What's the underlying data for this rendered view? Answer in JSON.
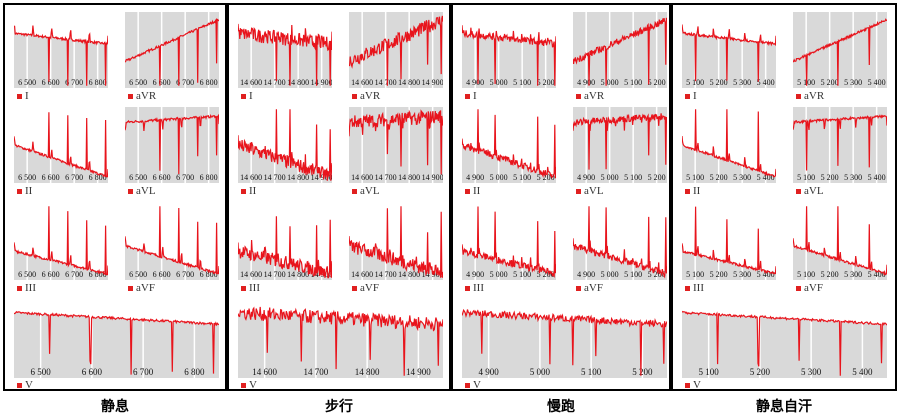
{
  "colors": {
    "trace": "#e8141c",
    "fill": "#d9d9d9",
    "grid": "#ffffff",
    "border": "#000000"
  },
  "chart_data": {
    "type": "line",
    "description_units": "normalized amplitude 0-1",
    "leads": [
      "I",
      "aVR",
      "II",
      "aVL",
      "III",
      "aVF",
      "V"
    ],
    "lead_shapes": {
      "I": {
        "baseline": [
          0.72,
          0.58
        ],
        "spike": "down",
        "secondary": "up"
      },
      "aVR": {
        "baseline": [
          0.35,
          0.9
        ],
        "spike": "down",
        "secondary": "none"
      },
      "II": {
        "baseline": [
          0.5,
          0.08
        ],
        "spike": "up",
        "secondary": "up"
      },
      "aVL": {
        "baseline": [
          0.8,
          0.88
        ],
        "spike": "down",
        "secondary": "down"
      },
      "III": {
        "baseline": [
          0.38,
          0.08
        ],
        "spike": "up",
        "secondary": "up"
      },
      "aVF": {
        "baseline": [
          0.45,
          0.08
        ],
        "spike": "up",
        "secondary": "up"
      },
      "V": {
        "baseline": [
          0.85,
          0.7
        ],
        "spike": "down",
        "secondary": "none"
      }
    },
    "panels": [
      {
        "title": "静息",
        "x_ticks": [
          "6 500",
          "6 600",
          "6 700",
          "6 800"
        ],
        "v_ticks": [
          "6 500",
          "6 600",
          "6 700",
          "6 800"
        ],
        "beats": 5,
        "noise": 0.015
      },
      {
        "title": "步行",
        "x_ticks": [
          "14 600",
          "14 700",
          "14 800",
          "14 900"
        ],
        "v_ticks": [
          "14 600",
          "14 700",
          "14 800",
          "14 900"
        ],
        "beats": 7,
        "noise": 0.09
      },
      {
        "title": "慢跑",
        "x_ticks": [
          "4 900",
          "5 000",
          "5 100",
          "5 200"
        ],
        "v_ticks": [
          "4 900",
          "5 000",
          "5 100",
          "5 200"
        ],
        "beats": 11,
        "noise": 0.045
      },
      {
        "title": "静息自汗",
        "x_ticks": [
          "5 100",
          "5 200",
          "5 300",
          "5 400"
        ],
        "v_ticks": [
          "5 100",
          "5 200",
          "5 300",
          "5 400"
        ],
        "beats": 6,
        "noise": 0.015
      }
    ]
  }
}
